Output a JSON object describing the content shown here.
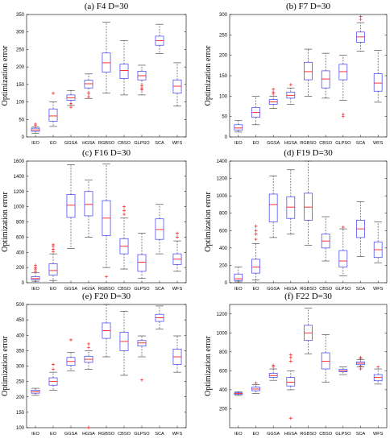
{
  "chart_data": [
    {
      "type": "boxplot",
      "title": "(a) F4 D=30",
      "ylabel": "Optimization error",
      "categories": [
        "IEO",
        "EO",
        "GGSA",
        "HGSA",
        "RGBSO",
        "CBSO",
        "GLPSO",
        "SCA",
        "WFS"
      ],
      "ylim": [
        0,
        350
      ],
      "yticks": [
        0,
        50,
        100,
        150,
        200,
        250,
        300,
        350
      ],
      "boxes": [
        {
          "whislo": 10,
          "q1": 16,
          "med": 20,
          "q3": 25,
          "whishi": 28,
          "outliers": [
            33,
            37
          ]
        },
        {
          "whislo": 30,
          "q1": 45,
          "med": 60,
          "q3": 80,
          "whishi": 100,
          "outliers": [
            125
          ]
        },
        {
          "whislo": 90,
          "q1": 105,
          "med": 112,
          "q3": 120,
          "whishi": 133,
          "outliers": [
            85,
            95
          ]
        },
        {
          "whislo": 110,
          "q1": 140,
          "med": 152,
          "q3": 162,
          "whishi": 180,
          "outliers": [
            115,
            125
          ]
        },
        {
          "whislo": 125,
          "q1": 185,
          "med": 212,
          "q3": 240,
          "whishi": 328,
          "outliers": []
        },
        {
          "whislo": 120,
          "q1": 167,
          "med": 190,
          "q3": 208,
          "whishi": 275,
          "outliers": []
        },
        {
          "whislo": 120,
          "q1": 163,
          "med": 175,
          "q3": 188,
          "whishi": 205,
          "outliers": [
            135,
            140,
            147
          ]
        },
        {
          "whislo": 238,
          "q1": 262,
          "med": 275,
          "q3": 288,
          "whishi": 322,
          "outliers": []
        },
        {
          "whislo": 88,
          "q1": 125,
          "med": 145,
          "q3": 163,
          "whishi": 212,
          "outliers": []
        }
      ]
    },
    {
      "type": "boxplot",
      "title": "(b) F7 D=30",
      "ylabel": "Optimization error",
      "categories": [
        "IEO",
        "EO",
        "GGSA",
        "HGSA",
        "RGBSO",
        "CBSO",
        "GLPSO",
        "SCA",
        "WFS"
      ],
      "ylim": [
        0,
        300
      ],
      "yticks": [
        0,
        50,
        100,
        150,
        200,
        250,
        300
      ],
      "boxes": [
        {
          "whislo": 12,
          "q1": 17,
          "med": 22,
          "q3": 30,
          "whishi": 40,
          "outliers": []
        },
        {
          "whislo": 30,
          "q1": 48,
          "med": 60,
          "q3": 72,
          "whishi": 100,
          "outliers": []
        },
        {
          "whislo": 70,
          "q1": 80,
          "med": 86,
          "q3": 92,
          "whishi": 100,
          "outliers": [
            105,
            110,
            117
          ]
        },
        {
          "whislo": 80,
          "q1": 95,
          "med": 102,
          "q3": 110,
          "whishi": 120,
          "outliers": [
            128
          ]
        },
        {
          "whislo": 100,
          "q1": 140,
          "med": 160,
          "q3": 183,
          "whishi": 215,
          "outliers": []
        },
        {
          "whislo": 95,
          "q1": 120,
          "med": 142,
          "q3": 162,
          "whishi": 205,
          "outliers": []
        },
        {
          "whislo": 90,
          "q1": 140,
          "med": 160,
          "q3": 178,
          "whishi": 200,
          "outliers": [
            50,
            55
          ]
        },
        {
          "whislo": 210,
          "q1": 232,
          "med": 245,
          "q3": 257,
          "whishi": 280,
          "outliers": [
            288,
            295
          ]
        },
        {
          "whislo": 85,
          "q1": 112,
          "med": 132,
          "q3": 155,
          "whishi": 212,
          "outliers": []
        }
      ]
    },
    {
      "type": "boxplot",
      "title": "(c) F16 D=30",
      "ylabel": "Optimization error",
      "categories": [
        "IEO",
        "EO",
        "GGSA",
        "HGSA",
        "RGBSO",
        "CBSO",
        "GLPSO",
        "SCA",
        "WFS"
      ],
      "ylim": [
        0,
        1600
      ],
      "yticks": [
        0,
        200,
        400,
        600,
        800,
        1000,
        1200,
        1400,
        1600
      ],
      "boxes": [
        {
          "whislo": 20,
          "q1": 40,
          "med": 55,
          "q3": 80,
          "whishi": 130,
          "outliers": [
            150,
            180,
            200,
            230
          ]
        },
        {
          "whislo": 30,
          "q1": 100,
          "med": 160,
          "q3": 250,
          "whishi": 380,
          "outliers": [
            410,
            440,
            480,
            500
          ]
        },
        {
          "whislo": 450,
          "q1": 860,
          "med": 1020,
          "q3": 1160,
          "whishi": 1550,
          "outliers": []
        },
        {
          "whislo": 600,
          "q1": 880,
          "med": 1030,
          "q3": 1200,
          "whishi": 1350,
          "outliers": []
        },
        {
          "whislo": 200,
          "q1": 620,
          "med": 850,
          "q3": 1080,
          "whishi": 1560,
          "outliers": [
            80
          ]
        },
        {
          "whislo": 180,
          "q1": 380,
          "med": 480,
          "q3": 580,
          "whishi": 850,
          "outliers": [
            900,
            950,
            1000
          ]
        },
        {
          "whislo": 60,
          "q1": 150,
          "med": 270,
          "q3": 370,
          "whishi": 650,
          "outliers": []
        },
        {
          "whislo": 380,
          "q1": 570,
          "med": 700,
          "q3": 840,
          "whishi": 1030,
          "outliers": []
        },
        {
          "whislo": 150,
          "q1": 240,
          "med": 310,
          "q3": 380,
          "whishi": 550,
          "outliers": [
            600,
            650
          ]
        }
      ]
    },
    {
      "type": "boxplot",
      "title": "(d) F19 D=30",
      "ylabel": "Optimization error",
      "categories": [
        "IEO",
        "EO",
        "GGSA",
        "HGSA",
        "RGBSO",
        "CBSO",
        "GLPSO",
        "SCA",
        "WFS"
      ],
      "ylim": [
        0,
        1400
      ],
      "yticks": [
        0,
        200,
        400,
        600,
        800,
        1000,
        1200,
        1400
      ],
      "boxes": [
        {
          "whislo": 10,
          "q1": 25,
          "med": 45,
          "q3": 100,
          "whishi": 180,
          "outliers": []
        },
        {
          "whislo": 30,
          "q1": 110,
          "med": 180,
          "q3": 270,
          "whishi": 450,
          "outliers": [
            500,
            560,
            600,
            650
          ]
        },
        {
          "whislo": 520,
          "q1": 700,
          "med": 900,
          "q3": 1020,
          "whishi": 1230,
          "outliers": []
        },
        {
          "whislo": 560,
          "q1": 740,
          "med": 870,
          "q3": 990,
          "whishi": 1300,
          "outliers": []
        },
        {
          "whislo": 430,
          "q1": 720,
          "med": 870,
          "q3": 1030,
          "whishi": 1400,
          "outliers": []
        },
        {
          "whislo": 250,
          "q1": 400,
          "med": 480,
          "q3": 560,
          "whishi": 760,
          "outliers": []
        },
        {
          "whislo": 80,
          "q1": 180,
          "med": 250,
          "q3": 370,
          "whishi": 620,
          "outliers": [
            640
          ]
        },
        {
          "whislo": 300,
          "q1": 520,
          "med": 620,
          "q3": 720,
          "whishi": 930,
          "outliers": []
        },
        {
          "whislo": 230,
          "q1": 290,
          "med": 380,
          "q3": 470,
          "whishi": 700,
          "outliers": []
        }
      ]
    },
    {
      "type": "boxplot",
      "title": "(e) F20 D=30",
      "ylabel": "Optimization error",
      "categories": [
        "IEO",
        "EO",
        "GGSA",
        "HGSA",
        "RGBSO",
        "CBSO",
        "GLPSO",
        "SCA",
        "WFS"
      ],
      "ylim": [
        100,
        500
      ],
      "yticks": [
        100,
        150,
        200,
        250,
        300,
        350,
        400,
        450,
        500
      ],
      "boxes": [
        {
          "whislo": 205,
          "q1": 212,
          "med": 217,
          "q3": 222,
          "whishi": 228,
          "outliers": []
        },
        {
          "whislo": 222,
          "q1": 238,
          "med": 250,
          "q3": 262,
          "whishi": 280,
          "outliers": [
            290,
            305
          ]
        },
        {
          "whislo": 285,
          "q1": 302,
          "med": 315,
          "q3": 328,
          "whishi": 345,
          "outliers": [
            385
          ]
        },
        {
          "whislo": 290,
          "q1": 312,
          "med": 322,
          "q3": 332,
          "whishi": 350,
          "outliers": [
            100,
            360,
            372
          ]
        },
        {
          "whislo": 330,
          "q1": 390,
          "med": 415,
          "q3": 440,
          "whishi": 500,
          "outliers": []
        },
        {
          "whislo": 270,
          "q1": 350,
          "med": 380,
          "q3": 410,
          "whishi": 478,
          "outliers": []
        },
        {
          "whislo": 330,
          "q1": 365,
          "med": 375,
          "q3": 383,
          "whishi": 398,
          "outliers": [
            255
          ]
        },
        {
          "whislo": 420,
          "q1": 445,
          "med": 457,
          "q3": 468,
          "whishi": 495,
          "outliers": []
        },
        {
          "whislo": 280,
          "q1": 305,
          "med": 330,
          "q3": 355,
          "whishi": 398,
          "outliers": []
        }
      ]
    },
    {
      "type": "boxplot",
      "title": "(f) F22 D=30",
      "ylabel": "Optimization error",
      "categories": [
        "IEO",
        "EO",
        "GGSA",
        "HGSA",
        "RGBSO",
        "CBSO",
        "GLPSO",
        "SCA",
        "WFS"
      ],
      "ylim": [
        0,
        1300
      ],
      "yticks": [
        200,
        400,
        600,
        800,
        1000,
        1200
      ],
      "boxes": [
        {
          "whislo": 340,
          "q1": 352,
          "med": 360,
          "q3": 368,
          "whishi": 380,
          "outliers": []
        },
        {
          "whislo": 360,
          "q1": 390,
          "med": 408,
          "q3": 428,
          "whishi": 455,
          "outliers": [
            470
          ]
        },
        {
          "whislo": 500,
          "q1": 530,
          "med": 550,
          "q3": 575,
          "whishi": 620,
          "outliers": [
            640,
            660
          ]
        },
        {
          "whislo": 400,
          "q1": 440,
          "med": 480,
          "q3": 530,
          "whishi": 600,
          "outliers": [
            100,
            700,
            740,
            770
          ]
        },
        {
          "whislo": 780,
          "q1": 920,
          "med": 1000,
          "q3": 1080,
          "whishi": 1260,
          "outliers": []
        },
        {
          "whislo": 480,
          "q1": 620,
          "med": 700,
          "q3": 790,
          "whishi": 980,
          "outliers": []
        },
        {
          "whislo": 560,
          "q1": 590,
          "med": 600,
          "q3": 615,
          "whishi": 640,
          "outliers": []
        },
        {
          "whislo": 640,
          "q1": 665,
          "med": 680,
          "q3": 695,
          "whishi": 720,
          "outliers": [
            620,
            650,
            730,
            740
          ]
        },
        {
          "whislo": 460,
          "q1": 495,
          "med": 530,
          "q3": 560,
          "whishi": 620,
          "outliers": [
            640
          ]
        }
      ]
    }
  ]
}
